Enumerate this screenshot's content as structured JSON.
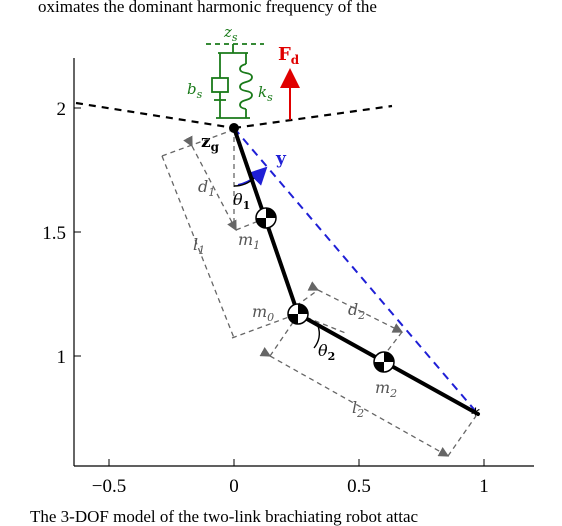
{
  "top_caption": "oximates the dominant harmonic frequency of the",
  "bottom_caption": "The 3-DOF model of the two-link brachiating robot attac",
  "axes": {
    "x_ticks": [
      {
        "value": -0.5,
        "label": "−0.5"
      },
      {
        "value": 0,
        "label": "0"
      },
      {
        "value": 0.5,
        "label": "0.5"
      },
      {
        "value": 1,
        "label": "1"
      }
    ],
    "y_ticks": [
      {
        "value": 1,
        "label": "1"
      },
      {
        "value": 1.5,
        "label": "1.5"
      },
      {
        "value": 2,
        "label": "2"
      }
    ]
  },
  "labels": {
    "zs": "z",
    "zs_sub": "s",
    "bs": "b",
    "bs_sub": "s",
    "ks": "k",
    "ks_sub": "s",
    "Fd": "F",
    "Fd_sub": "d",
    "zg": "z",
    "zg_sub": "g",
    "y": "y",
    "d1": "d",
    "d1_sub": "1",
    "theta1": "θ",
    "theta1_sub": "1",
    "m1": "m",
    "m1_sub": "1",
    "l1": "l",
    "l1_sub": "1",
    "m0": "m",
    "m0_sub": "0",
    "d2": "d",
    "d2_sub": "2",
    "theta2": "θ",
    "theta2_sub": "2",
    "m2": "m",
    "m2_sub": "2",
    "l2": "l",
    "l2_sub": "2"
  },
  "colors": {
    "spring": "#1a7a1a",
    "force": "#e00000",
    "dashed_line": "#1f1fd6",
    "dims": "#666666",
    "link": "#000000"
  }
}
